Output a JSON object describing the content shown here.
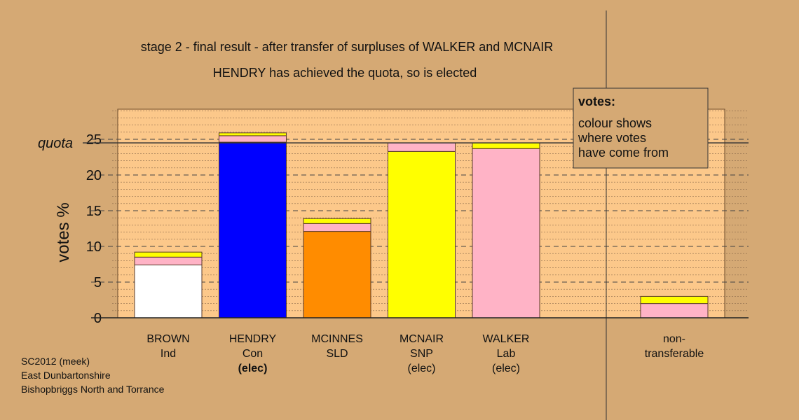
{
  "colors": {
    "background": "#d5a974",
    "plot_background": "#fcc88a",
    "white": "#ffffff",
    "blue": "#0000ff",
    "orange": "#ff8c00",
    "yellow": "#ffff00",
    "pink": "#ffb3c6"
  },
  "chart_data": {
    "type": "bar",
    "stacked": true,
    "title": "stage 2 - final result - after transfer of surpluses of WALKER and MCNAIR",
    "subtitle": "HENDRY has achieved the quota, so is elected",
    "ylabel": "votes %",
    "ylim": [
      0,
      29
    ],
    "yticks": [
      0,
      5,
      10,
      15,
      20,
      25
    ],
    "quota_label": "quota",
    "quota": 24.5,
    "categories": [
      {
        "name": "BROWN",
        "party": "Ind",
        "status": ""
      },
      {
        "name": "HENDRY",
        "party": "Con",
        "status": "(elec)",
        "status_bold": true
      },
      {
        "name": "MCINNES",
        "party": "SLD",
        "status": ""
      },
      {
        "name": "MCNAIR",
        "party": "SNP",
        "status": "(elec)"
      },
      {
        "name": "WALKER",
        "party": "Lab",
        "status": "(elec)"
      }
    ],
    "nontransferable": {
      "line1": "non-",
      "line2": "transferable",
      "segments": [
        {
          "value": 2.0,
          "color": "pink"
        },
        {
          "value": 1.0,
          "color": "yellow"
        }
      ]
    },
    "stacks": [
      [
        {
          "value": 7.4,
          "color": "white"
        },
        {
          "value": 1.1,
          "color": "pink"
        },
        {
          "value": 0.7,
          "color": "yellow"
        }
      ],
      [
        {
          "value": 24.6,
          "color": "blue"
        },
        {
          "value": 0.9,
          "color": "pink"
        },
        {
          "value": 0.4,
          "color": "yellow"
        }
      ],
      [
        {
          "value": 12.1,
          "color": "orange"
        },
        {
          "value": 1.1,
          "color": "pink"
        },
        {
          "value": 0.7,
          "color": "yellow"
        }
      ],
      [
        {
          "value": 23.3,
          "color": "yellow"
        },
        {
          "value": 1.2,
          "color": "pink"
        }
      ],
      [
        {
          "value": 23.7,
          "color": "pink"
        },
        {
          "value": 0.8,
          "color": "yellow"
        }
      ]
    ],
    "legend": {
      "title": "votes:",
      "lines": [
        "colour shows",
        "where votes",
        "have come from"
      ],
      "position": "top-right"
    },
    "grid": true
  },
  "footer": {
    "line1": "SC2012 (meek)",
    "line2": "East Dunbartonshire",
    "line3": "Bishopbriggs North and Torrance"
  }
}
